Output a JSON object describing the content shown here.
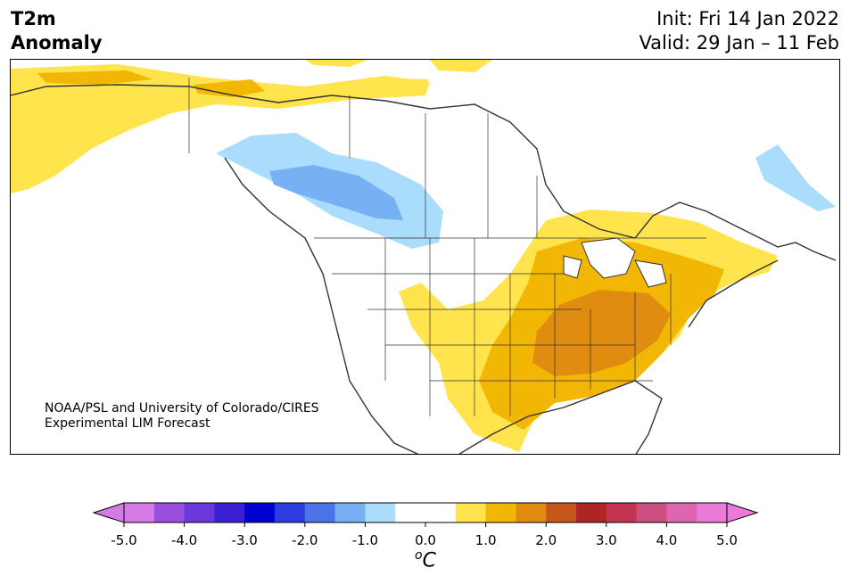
{
  "header": {
    "title_line1": "T2m",
    "title_line2": "Anomaly",
    "init": "Init: Fri 14 Jan 2022",
    "valid": "Valid: 29 Jan – 11 Feb"
  },
  "credit": {
    "line1": "NOAA/PSL and University of Colorado/CIRES",
    "line2": "Experimental LIM Forecast"
  },
  "colorbar": {
    "unit_base": "C",
    "unit_prefix": "o",
    "tick_labels": [
      "-5.0",
      "-4.0",
      "-3.0",
      "-2.0",
      "-1.0",
      "0.0",
      "1.0",
      "2.0",
      "3.0",
      "4.0",
      "5.0"
    ],
    "colors": [
      "#d57ae6",
      "#9b4fe0",
      "#6a38dd",
      "#3b1fd2",
      "#0000d0",
      "#2b3de0",
      "#4c73e8",
      "#77b1f4",
      "#aadcfc",
      "#ffffff",
      "#ffffff",
      "#ffe44d",
      "#f2b705",
      "#e08c10",
      "#c6561a",
      "#ae2525",
      "#c23450",
      "#cc4f80",
      "#dd66b0",
      "#ea7ad8"
    ],
    "under_color": "#d57ae6",
    "over_color": "#ea7ad8"
  },
  "map": {
    "colors": {
      "light_blue": "#aadcfc",
      "blue": "#77b1f4",
      "yellow": "#ffe44d",
      "gold": "#f2b705",
      "orange": "#e08c10",
      "coast": "#333333"
    }
  }
}
